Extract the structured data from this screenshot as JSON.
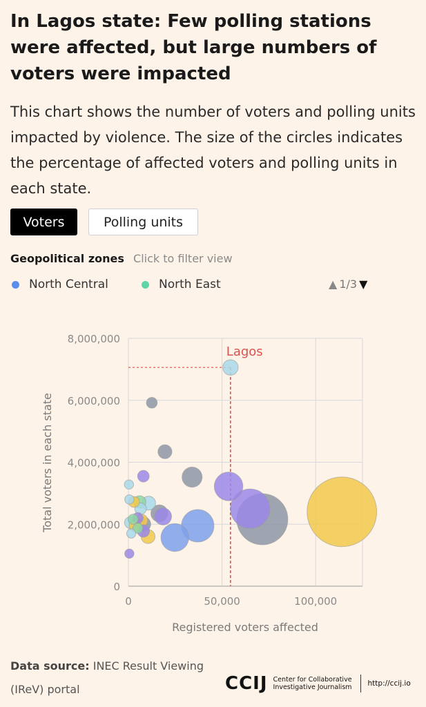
{
  "header": {
    "title": "In Lagos state: Few polling stations were affected, but large numbers of voters were impacted",
    "subtitle": "This chart shows the number of voters and polling units impacted by violence. The size of the circles indicates the percentage of affected voters and polling units in each state."
  },
  "toggle": {
    "voters_label": "Voters",
    "units_label": "Polling units",
    "active": "Voters"
  },
  "legend": {
    "title": "Geopolitical zones",
    "hint": "Click to filter view",
    "items": [
      {
        "label": "North Central",
        "color": "#5b8def"
      },
      {
        "label": "North East",
        "color": "#5fd4a8"
      }
    ],
    "page": "1/3"
  },
  "colors": {
    "gray": "#8e96a6",
    "yellow": "#f2c94c",
    "lavender": "#9b87e8",
    "blue": "#7ea0ec",
    "lightblue": "#a8d8ea",
    "green": "#8fd6a6",
    "annotation": "#d9534f"
  },
  "chart_data": {
    "type": "scatter",
    "xlabel": "Registered voters affected",
    "ylabel": "Total voters in each state",
    "xlim": [
      0,
      125000
    ],
    "ylim": [
      0,
      8000000
    ],
    "xticks": [
      0,
      50000,
      100000
    ],
    "xtick_labels": [
      "0",
      "50,000",
      "100,000"
    ],
    "yticks": [
      0,
      2000000,
      4000000,
      6000000,
      8000000
    ],
    "ytick_labels": [
      "0",
      "2,000,000",
      "4,000,000",
      "6,000,000",
      "8,000,000"
    ],
    "grid": true,
    "annotation": {
      "label": "Lagos",
      "x": 54500,
      "y": 7060000
    },
    "points": [
      {
        "x": 54500,
        "y": 7060000,
        "size": 2.0,
        "color": "lightblue"
      },
      {
        "x": 12500,
        "y": 5920000,
        "size": 1.4,
        "color": "gray"
      },
      {
        "x": 19500,
        "y": 4340000,
        "size": 1.8,
        "color": "gray"
      },
      {
        "x": 8000,
        "y": 3550000,
        "size": 1.5,
        "color": "lavender"
      },
      {
        "x": 34000,
        "y": 3520000,
        "size": 2.6,
        "color": "gray"
      },
      {
        "x": 53500,
        "y": 3220000,
        "size": 3.7,
        "color": "lavender"
      },
      {
        "x": 65000,
        "y": 2500000,
        "size": 5.1,
        "color": "lavender"
      },
      {
        "x": 71500,
        "y": 2160000,
        "size": 6.6,
        "color": "gray"
      },
      {
        "x": 114000,
        "y": 2400000,
        "size": 9.0,
        "color": "yellow"
      },
      {
        "x": 37000,
        "y": 1950000,
        "size": 4.2,
        "color": "blue"
      },
      {
        "x": 24800,
        "y": 1570000,
        "size": 3.6,
        "color": "blue"
      },
      {
        "x": 16500,
        "y": 2350000,
        "size": 2.2,
        "color": "gray"
      },
      {
        "x": 18500,
        "y": 2250000,
        "size": 2.2,
        "color": "lavender"
      },
      {
        "x": 10800,
        "y": 2680000,
        "size": 1.8,
        "color": "lightblue"
      },
      {
        "x": 6000,
        "y": 2720000,
        "size": 1.6,
        "color": "green"
      },
      {
        "x": 6500,
        "y": 2500000,
        "size": 1.5,
        "color": "lightblue"
      },
      {
        "x": 3000,
        "y": 2720000,
        "size": 1.4,
        "color": "yellow"
      },
      {
        "x": 500,
        "y": 2800000,
        "size": 1.2,
        "color": "lightblue"
      },
      {
        "x": 300,
        "y": 3280000,
        "size": 1.2,
        "color": "lightblue"
      },
      {
        "x": 8000,
        "y": 2000000,
        "size": 1.9,
        "color": "gray"
      },
      {
        "x": 7000,
        "y": 2120000,
        "size": 1.6,
        "color": "yellow"
      },
      {
        "x": 5000,
        "y": 2200000,
        "size": 1.4,
        "color": "lavender"
      },
      {
        "x": 2500,
        "y": 2160000,
        "size": 1.3,
        "color": "green"
      },
      {
        "x": 1000,
        "y": 2050000,
        "size": 1.5,
        "color": "lightblue"
      },
      {
        "x": 3500,
        "y": 1950000,
        "size": 1.5,
        "color": "yellow"
      },
      {
        "x": 5000,
        "y": 1870000,
        "size": 1.3,
        "color": "green"
      },
      {
        "x": 10500,
        "y": 1600000,
        "size": 1.8,
        "color": "yellow"
      },
      {
        "x": 8000,
        "y": 1780000,
        "size": 1.6,
        "color": "lavender"
      },
      {
        "x": 1500,
        "y": 1700000,
        "size": 1.2,
        "color": "lightblue"
      },
      {
        "x": 500,
        "y": 1050000,
        "size": 1.2,
        "color": "lavender"
      }
    ]
  },
  "footer": {
    "source_label": "Data source:",
    "source_text": "INEC Result Viewing (IReV) portal",
    "logo_mark": "CCIJ",
    "logo_name_line1": "Center for Collaborative",
    "logo_name_line2": "Investigative Journalism",
    "url": "http://ccij.io"
  }
}
